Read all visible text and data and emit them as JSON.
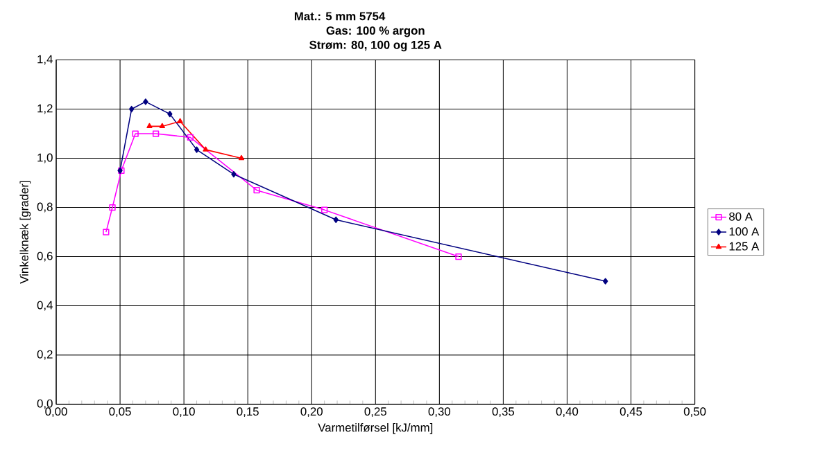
{
  "chart_data": {
    "type": "line",
    "title": "Mat.: 5 mm 5754",
    "subtitle": "Gas: 100 % argon\nStrøm: 80, 100 og 125 A",
    "xlabel": "Varmetilførsel [kJ/mm]",
    "ylabel": "Vinkelknæk [grader]",
    "xlim": [
      0,
      0.5
    ],
    "ylim": [
      0,
      1.4
    ],
    "xticks": [
      {
        "value": 0,
        "label": "0,00"
      },
      {
        "value": 0.05,
        "label": "0,05"
      },
      {
        "value": 0.1,
        "label": "0,10"
      },
      {
        "value": 0.15,
        "label": "0,15"
      },
      {
        "value": 0.2,
        "label": "0,20"
      },
      {
        "value": 0.25,
        "label": "0,25"
      },
      {
        "value": 0.3,
        "label": "0,30"
      },
      {
        "value": 0.35,
        "label": "0,35"
      },
      {
        "value": 0.4,
        "label": "0,40"
      },
      {
        "value": 0.45,
        "label": "0,45"
      },
      {
        "value": 0.5,
        "label": "0,50"
      }
    ],
    "yticks": [
      {
        "value": 0,
        "label": "0,0"
      },
      {
        "value": 0.2,
        "label": "0,2"
      },
      {
        "value": 0.4,
        "label": "0,4"
      },
      {
        "value": 0.6,
        "label": "0,6"
      },
      {
        "value": 0.8,
        "label": "0,8"
      },
      {
        "value": 1.0,
        "label": "1,0"
      },
      {
        "value": 1.2,
        "label": "1,2"
      },
      {
        "value": 1.4,
        "label": "1,4"
      }
    ],
    "grid": true,
    "legend": "right",
    "line_style": "solid",
    "series": [
      {
        "name": "80 A",
        "color": "#ff00ff",
        "marker": "square",
        "x": [
          0.039,
          0.044,
          0.051,
          0.062,
          0.078,
          0.105,
          0.157,
          0.21,
          0.315
        ],
        "values": [
          0.7,
          0.8,
          0.95,
          1.1,
          1.1,
          1.085,
          0.87,
          0.79,
          0.6
        ]
      },
      {
        "name": "100 A",
        "color": "#000080",
        "marker": "diamond",
        "x": [
          0.05,
          0.059,
          0.07,
          0.089,
          0.11,
          0.139,
          0.219,
          0.43
        ],
        "values": [
          0.95,
          1.2,
          1.23,
          1.18,
          1.035,
          0.935,
          0.75,
          0.5
        ]
      },
      {
        "name": "125 A",
        "color": "#ff0000",
        "marker": "triangle",
        "x": [
          0.073,
          0.083,
          0.097,
          0.117,
          0.145
        ],
        "values": [
          1.13,
          1.13,
          1.15,
          1.035,
          1.0
        ]
      }
    ]
  }
}
